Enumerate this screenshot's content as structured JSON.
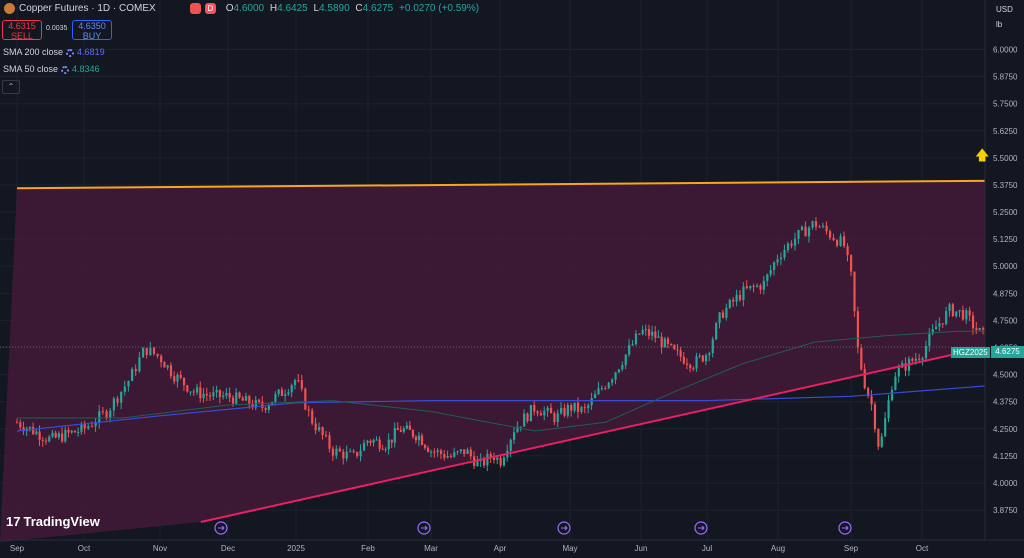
{
  "header": {
    "title": "Copper Futures · 1D · COMEX",
    "icon_d": "D",
    "ohlc": {
      "o_label": "O",
      "o": "4.6000",
      "h_label": "H",
      "h": "4.6425",
      "l_label": "L",
      "l": "4.5890",
      "c_label": "C",
      "c": "4.6275",
      "change": "+0.0270 (+0.59%)"
    }
  },
  "trade": {
    "sell_price": "4.6315",
    "sell_label": "SELL",
    "spread": "0.0035",
    "buy_price": "4.6350",
    "buy_label": "BUY"
  },
  "indicators": [
    {
      "label": "SMA 200 close",
      "value": "4.6819",
      "color": "#5b6bff"
    },
    {
      "label": "SMA 50 close",
      "value": "4.8346",
      "color": "#26a69a"
    }
  ],
  "axis_controls": {
    "currency": "USD",
    "unit": "lb"
  },
  "symbol_badge": "HGZ2025",
  "current_price": "4.6275",
  "branding": {
    "logo_mark": "17",
    "name": "TradingView"
  },
  "colors": {
    "up": "#26a69a",
    "down": "#ef5350",
    "background": "#131722",
    "sma200": "#3a4bd6",
    "sma50": "#1f5f55",
    "upper_trendline": "#f5a623",
    "lower_trendline": "#e91e63",
    "triangle_fill": "#4a1a3a"
  },
  "chart_data": {
    "type": "candlestick",
    "title": "Copper Futures · 1D · COMEX",
    "x_ticks": [
      "Sep",
      "Oct",
      "Nov",
      "Dec",
      "2025",
      "Feb",
      "Mar",
      "Apr",
      "May",
      "Jun",
      "Jul",
      "Aug",
      "Sep",
      "Oct"
    ],
    "y_ticks": [
      "6.0000",
      "5.8750",
      "5.7500",
      "5.6250",
      "5.5000",
      "5.3750",
      "5.2500",
      "5.1250",
      "5.0000",
      "4.8750",
      "4.7500",
      "4.6250",
      "4.5000",
      "4.3750",
      "4.2500",
      "4.1250",
      "4.0000",
      "3.8750"
    ],
    "ylim": [
      3.82,
      6.03
    ],
    "close_path": [
      [
        0,
        4.28
      ],
      [
        0.5,
        4.2
      ],
      [
        1,
        4.25
      ],
      [
        1.3,
        4.33
      ],
      [
        1.6,
        4.48
      ],
      [
        1.8,
        4.62
      ],
      [
        2.0,
        4.58
      ],
      [
        2.2,
        4.5
      ],
      [
        2.5,
        4.42
      ],
      [
        2.8,
        4.4
      ],
      [
        3.0,
        4.4
      ],
      [
        3.2,
        4.38
      ],
      [
        3.5,
        4.35
      ],
      [
        3.8,
        4.42
      ],
      [
        4.0,
        4.48
      ],
      [
        4.2,
        4.3
      ],
      [
        4.5,
        4.15
      ],
      [
        4.8,
        4.12
      ],
      [
        5.0,
        4.2
      ],
      [
        5.3,
        4.18
      ],
      [
        5.5,
        4.25
      ],
      [
        5.8,
        4.22
      ],
      [
        6.0,
        4.15
      ],
      [
        6.3,
        4.12
      ],
      [
        6.5,
        4.15
      ],
      [
        6.7,
        4.08
      ],
      [
        6.9,
        4.13
      ],
      [
        7.0,
        4.1
      ],
      [
        7.2,
        4.25
      ],
      [
        7.5,
        4.35
      ],
      [
        7.8,
        4.3
      ],
      [
        8.0,
        4.35
      ],
      [
        8.2,
        4.33
      ],
      [
        8.4,
        4.42
      ],
      [
        8.6,
        4.5
      ],
      [
        8.8,
        4.6
      ],
      [
        9.0,
        4.7
      ],
      [
        9.2,
        4.68
      ],
      [
        9.5,
        4.6
      ],
      [
        9.8,
        4.55
      ],
      [
        10.0,
        4.6
      ],
      [
        10.2,
        4.78
      ],
      [
        10.5,
        4.88
      ],
      [
        10.8,
        4.92
      ],
      [
        11.0,
        5.05
      ],
      [
        11.2,
        5.12
      ],
      [
        11.5,
        5.2
      ],
      [
        11.7,
        5.15
      ],
      [
        11.9,
        5.1
      ],
      [
        12.0,
        4.95
      ],
      [
        12.1,
        4.6
      ],
      [
        12.2,
        4.45
      ],
      [
        12.3,
        4.35
      ],
      [
        12.4,
        4.15
      ],
      [
        12.6,
        4.5
      ],
      [
        12.8,
        4.55
      ],
      [
        13.0,
        4.6
      ],
      [
        13.2,
        4.72
      ],
      [
        13.4,
        4.8
      ],
      [
        13.6,
        4.78
      ],
      [
        13.8,
        4.7
      ],
      [
        14.0,
        4.65
      ],
      [
        14.2,
        4.6
      ],
      [
        14.4,
        4.68
      ],
      [
        14.6,
        4.62
      ],
      [
        14.8,
        4.66
      ],
      [
        15.0,
        4.72
      ],
      [
        15.2,
        4.7
      ],
      [
        15.4,
        4.8
      ],
      [
        15.6,
        4.85
      ],
      [
        15.8,
        4.78
      ],
      [
        16.0,
        4.75
      ],
      [
        16.2,
        4.88
      ],
      [
        16.4,
        4.9
      ],
      [
        16.6,
        5.05
      ],
      [
        16.8,
        5.1
      ],
      [
        17.0,
        5.0
      ],
      [
        17.1,
        5.62
      ],
      [
        17.3,
        5.55
      ],
      [
        17.5,
        5.62
      ],
      [
        17.7,
        5.48
      ],
      [
        17.9,
        5.7
      ],
      [
        18.0,
        5.78
      ],
      [
        18.2,
        5.72
      ],
      [
        18.4,
        5.6
      ],
      [
        18.5,
        4.55
      ],
      [
        18.7,
        4.4
      ],
      [
        18.9,
        4.45
      ],
      [
        19.1,
        4.42
      ],
      [
        19.3,
        4.5
      ],
      [
        19.5,
        4.48
      ],
      [
        19.7,
        4.52
      ],
      [
        19.9,
        4.45
      ],
      [
        20.1,
        4.48
      ],
      [
        20.3,
        4.52
      ],
      [
        20.5,
        4.5
      ],
      [
        20.7,
        4.56
      ],
      [
        20.9,
        4.6
      ],
      [
        21.1,
        4.62
      ],
      [
        21.3,
        4.68
      ],
      [
        21.5,
        4.62
      ],
      [
        21.7,
        4.66
      ],
      [
        21.9,
        4.7
      ],
      [
        22.1,
        4.65
      ],
      [
        22.3,
        4.63
      ]
    ],
    "sma200_path": [
      [
        0,
        4.24
      ],
      [
        2,
        4.31
      ],
      [
        4,
        4.37
      ],
      [
        6,
        4.38
      ],
      [
        8,
        4.38
      ],
      [
        10,
        4.38
      ],
      [
        12,
        4.4
      ],
      [
        14,
        4.45
      ],
      [
        16,
        4.52
      ],
      [
        17,
        4.57
      ],
      [
        18,
        4.63
      ],
      [
        19,
        4.65
      ],
      [
        20,
        4.66
      ],
      [
        21,
        4.67
      ],
      [
        22,
        4.68
      ]
    ],
    "sma50_path": [
      [
        0,
        4.3
      ],
      [
        1.5,
        4.3
      ],
      [
        3,
        4.36
      ],
      [
        4.5,
        4.38
      ],
      [
        6,
        4.33
      ],
      [
        7.5,
        4.24
      ],
      [
        8.5,
        4.28
      ],
      [
        9.5,
        4.42
      ],
      [
        10.5,
        4.55
      ],
      [
        11.5,
        4.65
      ],
      [
        12.5,
        4.68
      ],
      [
        13.5,
        4.7
      ],
      [
        14.5,
        4.7
      ],
      [
        15.5,
        4.71
      ],
      [
        16.5,
        4.86
      ],
      [
        17.5,
        5.02
      ],
      [
        18.0,
        5.13
      ],
      [
        19,
        5.08
      ],
      [
        20,
        5.02
      ],
      [
        21,
        4.93
      ],
      [
        22,
        4.83
      ]
    ],
    "upper_trendline": [
      [
        0,
        5.36
      ],
      [
        24.4,
        5.42
      ]
    ],
    "lower_trendline": [
      [
        2.6,
        3.82
      ],
      [
        24.4,
        5.38
      ]
    ]
  }
}
